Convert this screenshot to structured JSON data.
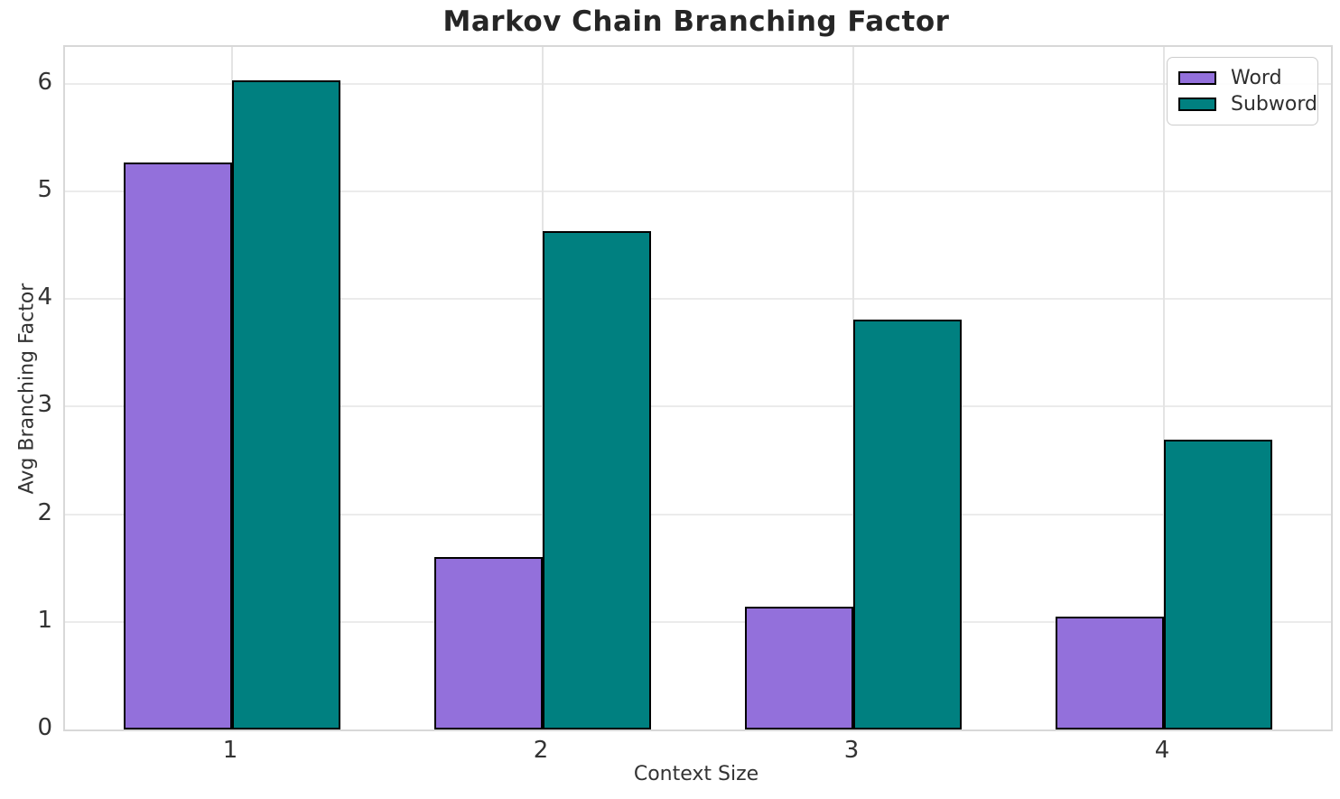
{
  "chart_data": {
    "type": "bar",
    "title": "Markov Chain Branching Factor",
    "categories": [
      "1",
      "2",
      "3",
      "4"
    ],
    "series": [
      {
        "name": "Word",
        "color": "#9370DB",
        "values": [
          5.27,
          1.6,
          1.14,
          1.05
        ]
      },
      {
        "name": "Subword",
        "color": "#008080",
        "values": [
          6.03,
          4.63,
          3.81,
          2.69
        ]
      }
    ],
    "xlabel": "Context Size",
    "ylabel": "Avg Branching Factor",
    "ylim": [
      0,
      6.34
    ],
    "yticks": [
      0,
      1,
      2,
      3,
      4,
      5,
      6
    ],
    "grid": true,
    "legend_position": "upper right",
    "bar_edge_color": "#000000",
    "colors": {
      "background": "#ffffff",
      "grid": "#ebebeb",
      "spine": "#d8d8d8",
      "text": "#333333",
      "title_text": "#262626"
    }
  }
}
